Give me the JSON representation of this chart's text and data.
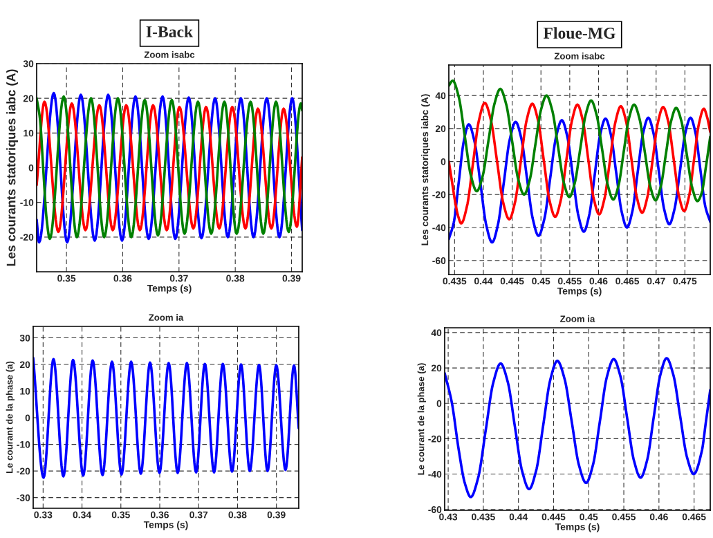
{
  "chart_data": [
    {
      "type": "line",
      "title": "Zoom isabc",
      "xlabel": "Temps (s)",
      "ylabel": "Les courants statoriques iabc (A)",
      "annotations": [
        "I-Back"
      ],
      "grid": true,
      "xlim": [
        0.3447,
        0.3919
      ],
      "xticks": [
        0.35,
        0.36,
        0.37,
        0.38,
        0.39
      ],
      "ylim": [
        -30,
        30
      ],
      "yticks": [
        -20,
        -10,
        0,
        10,
        20,
        30
      ],
      "series": [
        {
          "color": "#0000ff",
          "x": [
            0.3447,
            0.34514,
            0.34774,
            0.35012,
            0.35255,
            0.35502,
            0.35741,
            0.35988,
            0.36226,
            0.36461,
            0.36708,
            0.36934,
            0.37173,
            0.37399,
            0.37642,
            0.37868,
            0.38099,
            0.38325,
            0.3856,
            0.38786,
            0.39012,
            0.3919
          ],
          "values": [
            -15,
            -21.5,
            21.5,
            -21.5,
            21,
            -21,
            21,
            -21,
            20.5,
            -20.5,
            20.5,
            -20.5,
            20.2,
            -20.3,
            20,
            -20,
            20,
            -20,
            20,
            -20,
            20,
            -18
          ]
        },
        {
          "color": "#ff0000",
          "x": [
            0.3447,
            0.34609,
            0.34856,
            0.35095,
            0.35337,
            0.35584,
            0.35823,
            0.36062,
            0.36305,
            0.36539,
            0.36782,
            0.37008,
            0.37255,
            0.37481,
            0.37716,
            0.37947,
            0.38181,
            0.38403,
            0.38642,
            0.3886,
            0.39095,
            0.3919
          ],
          "values": [
            -5,
            19,
            -18.5,
            18.5,
            -18,
            18,
            -18,
            18,
            -18,
            18,
            -18,
            17.5,
            -17.5,
            17.5,
            -17.5,
            17.5,
            -17.5,
            17,
            -17.5,
            17,
            -17,
            3
          ]
        },
        {
          "color": "#008000",
          "x": [
            0.3447,
            0.34529,
            0.34587,
            0.34646,
            0.34704,
            0.34951,
            0.35185,
            0.35436,
            0.35671,
            0.35914,
            0.36152,
            0.36391,
            0.36626,
            0.36872,
            0.37099,
            0.37337,
            0.37572,
            0.37807,
            0.38025,
            0.38272,
            0.38498,
            0.38724,
            0.38951,
            0.39165,
            0.3919
          ],
          "values": [
            20,
            14.1,
            -0.3,
            -14.6,
            -20.5,
            20.5,
            -20,
            20,
            -20,
            20,
            -20,
            19.5,
            -19.5,
            19.5,
            -19,
            19,
            -19,
            19,
            -19,
            19,
            -19,
            19,
            -18.5,
            18.5,
            16.5
          ]
        }
      ]
    },
    {
      "type": "line",
      "title": "Zoom isabc",
      "xlabel": "Temps (s)",
      "ylabel": "Les courants statoriques iabc (A)",
      "annotations": [
        "Floue-MG"
      ],
      "grid": true,
      "xlim": [
        0.434,
        0.4794
      ],
      "xticks": [
        0.435,
        0.44,
        0.445,
        0.45,
        0.455,
        0.46,
        0.465,
        0.47,
        0.475
      ],
      "ylim": [
        -68.5,
        58.5
      ],
      "yticks": [
        -60,
        -40,
        -20,
        0,
        20,
        40
      ],
      "series": [
        {
          "color": "#0000ff",
          "x": [
            0.434,
            0.43487,
            0.43573,
            0.4366,
            0.43746,
            0.43847,
            0.43949,
            0.4405,
            0.44151,
            0.44253,
            0.44356,
            0.44458,
            0.4456,
            0.4466,
            0.44759,
            0.44859,
            0.44958,
            0.45059,
            0.45161,
            0.45262,
            0.45363,
            0.45458,
            0.45554,
            0.45649,
            0.45744,
            0.45838,
            0.45933,
            0.46027,
            0.46121,
            0.46214,
            0.46308,
            0.46401,
            0.46494,
            0.46587,
            0.46679,
            0.46772,
            0.46864,
            0.46955,
            0.47047,
            0.47138,
            0.47229,
            0.47321,
            0.47414,
            0.47506,
            0.47598,
            0.47684,
            0.47769,
            0.47855,
            0.4794
          ],
          "values": [
            -47,
            -36.8,
            -12.3,
            12.3,
            22.5,
            12,
            -13.3,
            -38.5,
            -49,
            -38.3,
            -12.5,
            13.3,
            24,
            13.9,
            -10.5,
            -34.9,
            -45,
            -34.8,
            -10,
            14.8,
            25,
            15.1,
            -8.8,
            -32.6,
            -42.5,
            -32.5,
            -8.3,
            16,
            26,
            16.3,
            -7,
            -30.3,
            -40,
            -30.3,
            -6.8,
            16.8,
            26.5,
            17.1,
            -5.8,
            -28.6,
            -38,
            -28.6,
            -5.8,
            17.1,
            26.5,
            17.3,
            -5,
            -27.3,
            -36.5
          ]
        },
        {
          "color": "#ff0000",
          "x": [
            0.434,
            0.43454,
            0.43508,
            0.43561,
            0.43615,
            0.43717,
            0.4382,
            0.43922,
            0.44024,
            0.4413,
            0.44237,
            0.44343,
            0.44449,
            0.44549,
            0.4465,
            0.4475,
            0.4485,
            0.44949,
            0.45049,
            0.45148,
            0.45247,
            0.45344,
            0.4544,
            0.45537,
            0.45633,
            0.45727,
            0.45822,
            0.45916,
            0.4601,
            0.46104,
            0.46199,
            0.46293,
            0.46387,
            0.4648,
            0.46572,
            0.46665,
            0.46757,
            0.46848,
            0.4694,
            0.47031,
            0.47122,
            0.47213,
            0.47305,
            0.47396,
            0.47487,
            0.47573,
            0.47658,
            0.47744,
            0.47829,
            0.47885,
            0.4794
          ],
          "values": [
            0,
            -12,
            -24,
            -33,
            -37.5,
            -26.8,
            -1,
            24.8,
            35.5,
            25.2,
            0.3,
            -24.7,
            -35,
            -24.8,
            0,
            24.8,
            35,
            25,
            0.8,
            -23.5,
            -33.5,
            -23.5,
            0.5,
            24.5,
            34.5,
            24.8,
            1.3,
            -22.3,
            -32,
            -22.4,
            0.8,
            23.9,
            33.5,
            24.1,
            1.3,
            -21.6,
            -31,
            -21.6,
            1,
            23.6,
            33,
            23.8,
            1.5,
            -20.8,
            -30,
            -20.9,
            1,
            22.9,
            32,
            27,
            18
          ]
        },
        {
          "color": "#008000",
          "x": [
            0.434,
            0.43468,
            0.43572,
            0.43677,
            0.43781,
            0.43885,
            0.43987,
            0.4409,
            0.44192,
            0.44294,
            0.44397,
            0.44501,
            0.44604,
            0.44707,
            0.44805,
            0.44902,
            0.45,
            0.45097,
            0.45196,
            0.45296,
            0.45395,
            0.45494,
            0.45588,
            0.45683,
            0.45777,
            0.45871,
            0.45967,
            0.46064,
            0.4616,
            0.46256,
            0.46347,
            0.46437,
            0.46528,
            0.46618,
            0.46711,
            0.46805,
            0.46898,
            0.46991,
            0.4708,
            0.4717,
            0.47259,
            0.47348,
            0.47441,
            0.47533,
            0.47626,
            0.47718,
            0.47792,
            0.47866,
            0.4794
          ],
          "values": [
            46,
            49,
            39.2,
            15.5,
            -8.2,
            -18,
            -8.9,
            13,
            34.9,
            44,
            34.6,
            12,
            -10.6,
            -20,
            -11.2,
            10,
            31.2,
            40,
            31,
            9.3,
            -12.5,
            -21.5,
            -12.9,
            7.8,
            28.4,
            37,
            28.2,
            7,
            -14.2,
            -23,
            -14.6,
            5.8,
            26.1,
            34.5,
            26,
            5.5,
            -15,
            -23.5,
            -15.3,
            4.5,
            24.3,
            32.5,
            24.2,
            4.3,
            -15.7,
            -24,
            -19,
            -3,
            15
          ]
        }
      ]
    },
    {
      "type": "line",
      "title": "Zoom ia",
      "xlabel": "Temps (s)",
      "ylabel": "Le courant de la phase (a)",
      "grid": true,
      "xlim": [
        0.32745,
        0.39575
      ],
      "xticks": [
        0.33,
        0.34,
        0.35,
        0.36,
        0.37,
        0.38,
        0.39
      ],
      "ylim": [
        -34,
        34.3
      ],
      "yticks": [
        -30,
        -20,
        -10,
        0,
        10,
        20,
        30
      ],
      "series": [
        {
          "color": "#0000ff",
          "x": [
            0.32745,
            0.33012,
            0.33267,
            0.33521,
            0.3377,
            0.34031,
            0.34274,
            0.34529,
            0.34772,
            0.35015,
            0.35264,
            0.35513,
            0.3575,
            0.35993,
            0.3623,
            0.36461,
            0.36698,
            0.36935,
            0.3716,
            0.37397,
            0.37622,
            0.37859,
            0.3809,
            0.38316,
            0.38553,
            0.38772,
            0.38997,
            0.39234,
            0.39453,
            0.39575
          ],
          "values": [
            22.5,
            -22.5,
            22,
            -22,
            21.7,
            -21.7,
            21.5,
            -21.5,
            21,
            -21.3,
            21,
            -21,
            20.7,
            -20.7,
            20.5,
            -20.7,
            20.5,
            -20.5,
            20.2,
            -20.5,
            20.2,
            -20.2,
            20,
            -20,
            19.8,
            -20,
            19.7,
            -19.6,
            19.6,
            -4
          ]
        }
      ]
    },
    {
      "type": "line",
      "title": "Zoom ia",
      "xlabel": "Temps (s)",
      "ylabel": "Le courant de la phase (a)",
      "grid": true,
      "xlim": [
        0.4295,
        0.4673
      ],
      "xticks": [
        0.43,
        0.435,
        0.44,
        0.445,
        0.45,
        0.455,
        0.46,
        0.465
      ],
      "ylim": [
        -60.5,
        42.7
      ],
      "yticks": [
        -60,
        -40,
        -20,
        0,
        20,
        40
      ],
      "series": [
        {
          "color": "#0000ff",
          "x": [
            0.4295,
            0.4305,
            0.4315,
            0.43236,
            0.43321,
            0.43427,
            0.43534,
            0.4364,
            0.43746,
            0.43848,
            0.43949,
            0.44051,
            0.44152,
            0.44253,
            0.44353,
            0.44454,
            0.44554,
            0.44656,
            0.44759,
            0.44861,
            0.44963,
            0.45061,
            0.4516,
            0.45258,
            0.45356,
            0.45452,
            0.45548,
            0.45643,
            0.45739,
            0.45832,
            0.45924,
            0.46017,
            0.46109,
            0.46206,
            0.46302,
            0.46399,
            0.46495,
            0.4661,
            0.4667,
            0.4673
          ],
          "values": [
            17,
            0.8,
            -26.3,
            -45,
            -53,
            -42,
            -15.3,
            11.4,
            22.5,
            12.1,
            -13,
            -38.1,
            -48.5,
            -37.9,
            -12.3,
            13.4,
            24,
            13.9,
            -10.5,
            -34.9,
            -45,
            -34.8,
            -10,
            14.8,
            25,
            15.2,
            -8.5,
            -32.2,
            -42,
            -32.1,
            -8.3,
            15.6,
            25.5,
            15.9,
            -7.3,
            -30.4,
            -40,
            -27,
            -10,
            7.5
          ]
        }
      ]
    }
  ]
}
